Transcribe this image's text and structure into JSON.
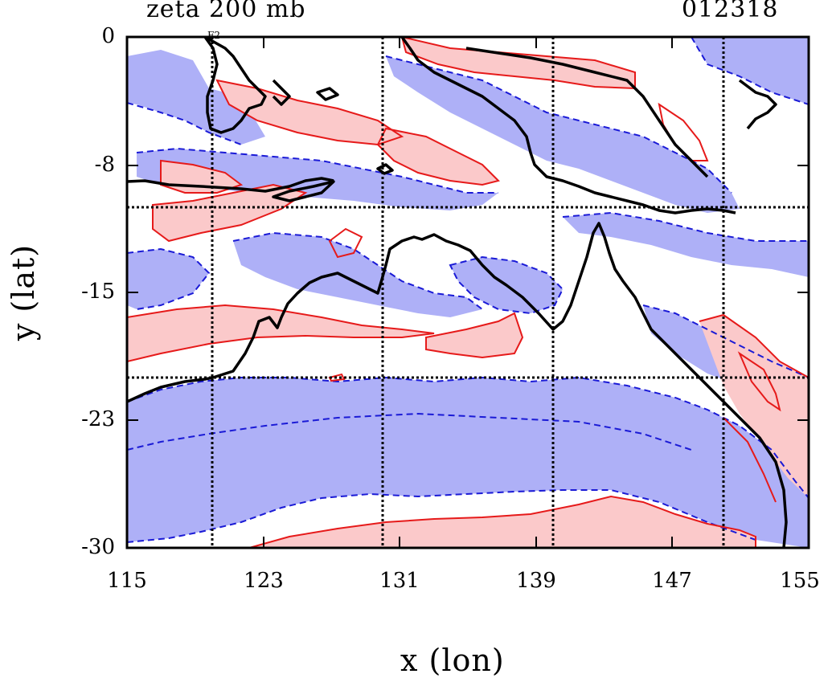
{
  "title_left": "zeta 200 mb",
  "title_right": "012318",
  "map_label": "F2",
  "x_axis": {
    "label": "x (lon)",
    "ticks": [
      "115",
      "123",
      "131",
      "139",
      "147",
      "155"
    ]
  },
  "y_axis": {
    "label": "y (lat)",
    "ticks": [
      "0",
      "-8",
      "-15",
      "-23",
      "-30"
    ]
  },
  "colors": {
    "negative_fill": "#aeb0f7",
    "negative_contour": "#1a1ad6",
    "positive_fill": "#fbc9ca",
    "positive_contour": "#e61a1a",
    "coastline": "#000000"
  },
  "chart_data": {
    "type": "heatmap",
    "field": "relative vorticity (zeta)",
    "level": "200 mb",
    "xlim": [
      115,
      155
    ],
    "ylim": [
      -30,
      0
    ],
    "grid": true,
    "grid_lines_lon": [
      120,
      130,
      140,
      150
    ],
    "grid_lines_lat": [
      -10,
      -20
    ]
  }
}
